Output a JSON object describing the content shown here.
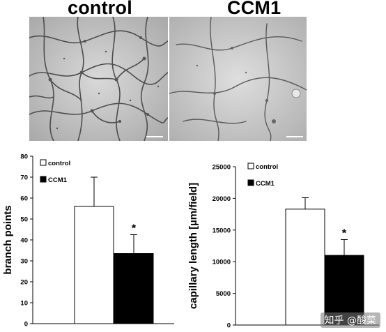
{
  "panels": {
    "left_title": "control",
    "right_title": "CCM1"
  },
  "watermark": "知乎 @酸菜",
  "chart_data": [
    {
      "type": "bar",
      "categories": [
        "control",
        "CCM1"
      ],
      "values": [
        56,
        33.5
      ],
      "errors": [
        14,
        9
      ],
      "significance": [
        "",
        "*"
      ],
      "colors": [
        "#ffffff",
        "#000000"
      ],
      "ylabel": "branch points",
      "xlabel": "",
      "ylim": [
        0,
        80
      ],
      "yticks": [
        "0",
        "10",
        "20",
        "30",
        "40",
        "50",
        "60",
        "70",
        "80"
      ],
      "legend": [
        {
          "label": "control",
          "color": "#ffffff"
        },
        {
          "label": "CCM1",
          "color": "#000000"
        }
      ],
      "legend_position": "top-left"
    },
    {
      "type": "bar",
      "categories": [
        "control",
        "CCM1"
      ],
      "values": [
        18300,
        11000
      ],
      "errors": [
        1800,
        2500
      ],
      "significance": [
        "",
        "*"
      ],
      "colors": [
        "#ffffff",
        "#000000"
      ],
      "ylabel": "capillary length [µm/field]",
      "xlabel": "",
      "ylim": [
        0,
        25000
      ],
      "yticks": [
        "0",
        "5000",
        "10000",
        "15000",
        "20000",
        "25000"
      ],
      "legend": [
        {
          "label": "control",
          "color": "#ffffff"
        },
        {
          "label": "CCM1",
          "color": "#000000"
        }
      ],
      "legend_position": "top-left"
    }
  ]
}
